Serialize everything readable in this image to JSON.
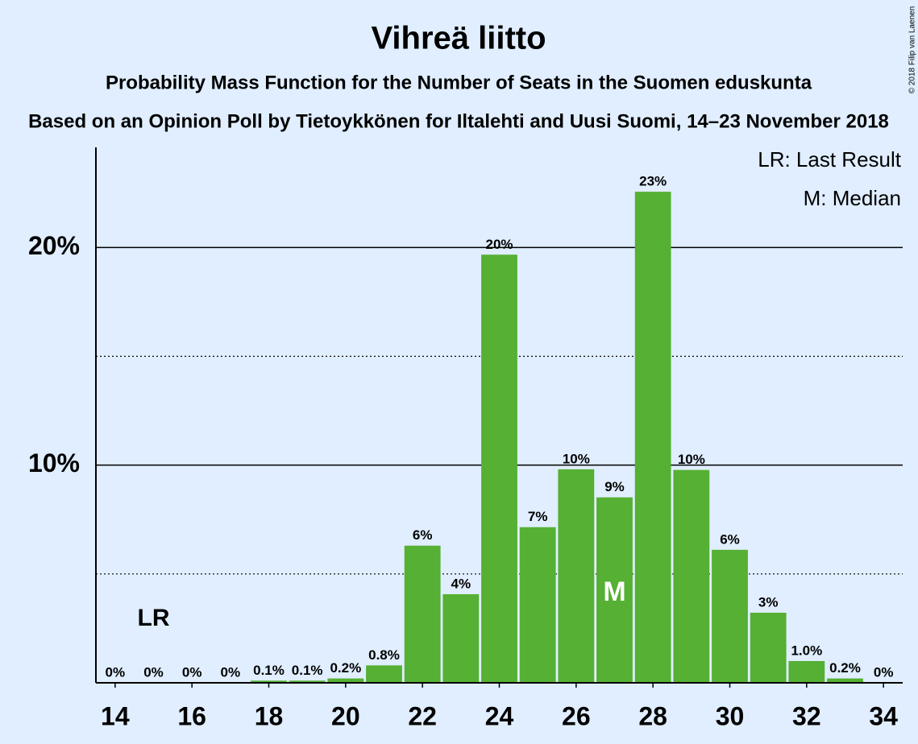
{
  "chart_data": {
    "type": "bar",
    "title": "Vihreä liitto",
    "subtitle": "Probability Mass Function for the Number of Seats in the Suomen eduskunta",
    "subtitle2": "Based on an Opinion Poll by Tietoykkönen for Iltalehti and Uusi Suomi, 14–23 November 2018",
    "credit": "© 2018 Filip van Laenen",
    "x": [
      14,
      15,
      16,
      17,
      18,
      19,
      20,
      21,
      22,
      23,
      24,
      25,
      26,
      27,
      28,
      29,
      30,
      31,
      32,
      33,
      34
    ],
    "values": [
      0,
      0,
      0,
      0,
      0.1,
      0.1,
      0.2,
      0.8,
      6.3,
      4.07,
      19.67,
      7.15,
      9.81,
      8.52,
      22.56,
      9.78,
      6.11,
      3.22,
      1.0,
      0.2,
      0
    ],
    "value_labels": [
      "0%",
      "0%",
      "0%",
      "0%",
      "0.1%",
      "0.1%",
      "0.2%",
      "0.8%",
      "6%",
      "4%",
      "20%",
      "7%",
      "10%",
      "9%",
      "23%",
      "10%",
      "6%",
      "3%",
      "1.0%",
      "0.2%",
      "0%"
    ],
    "color": "#55b033",
    "xlim": [
      13.5,
      34.5
    ],
    "xticks": [
      14,
      16,
      18,
      20,
      22,
      24,
      26,
      28,
      30,
      32,
      34
    ],
    "ylim": [
      0,
      24.6
    ],
    "yticks": [
      {
        "value": 10,
        "label": "10%"
      },
      {
        "value": 20,
        "label": "20%"
      }
    ],
    "minor_gridlines": [
      5,
      15
    ],
    "grid": true,
    "annotations": [
      {
        "text": "LR",
        "x": 15
      },
      {
        "text": "M",
        "x": 27
      }
    ],
    "legend_notes": [
      "LR: Last Result",
      "M: Median"
    ]
  }
}
